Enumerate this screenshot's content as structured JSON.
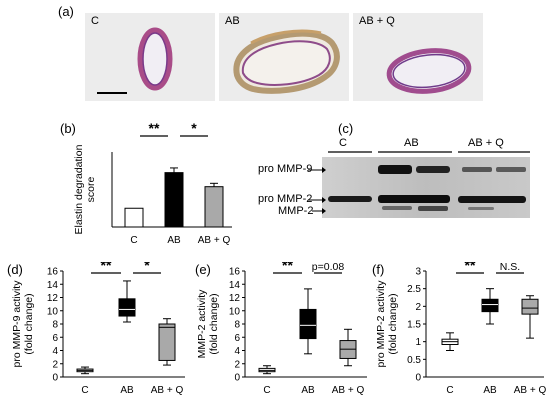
{
  "panels": {
    "a": {
      "label": "(a)",
      "images": [
        {
          "label": "C",
          "ring_color": "#b0508a"
        },
        {
          "label": "AB",
          "ring_color": "#9a7a6a"
        },
        {
          "label": "AB + Q",
          "ring_color": "#a05090"
        }
      ]
    },
    "b": {
      "label": "(b)"
    },
    "c": {
      "label": "(c)",
      "lanes": [
        "C",
        "AB",
        "AB + Q"
      ],
      "bands": [
        "pro MMP-9",
        "pro MMP-2",
        "MMP-2"
      ]
    },
    "d": {
      "label": "(d)"
    },
    "e": {
      "label": "(e)"
    },
    "f": {
      "label": "(f)"
    }
  },
  "chart_data": [
    {
      "id": "b",
      "type": "bar",
      "categories": [
        "C",
        "AB",
        "AB + Q"
      ],
      "values": [
        1.0,
        2.9,
        2.15
      ],
      "errors": [
        0,
        0.25,
        0.18
      ],
      "colors": [
        "#ffffff",
        "#000000",
        "#a9a9a9"
      ],
      "ylabel": "Elastin degradation score",
      "ylabel_lines": [
        "Elastin degradation",
        "score"
      ],
      "ylim": [
        0,
        4
      ],
      "yticks": [],
      "grid": false,
      "significance": [
        {
          "from": 0,
          "to": 1,
          "text": "**"
        },
        {
          "from": 1,
          "to": 2,
          "text": "*"
        }
      ]
    },
    {
      "id": "d",
      "type": "box",
      "categories": [
        "C",
        "AB",
        "AB + Q"
      ],
      "boxes": [
        {
          "min": 0.5,
          "q1": 0.8,
          "median": 1.0,
          "q3": 1.2,
          "max": 1.5,
          "fill": "#ffffff"
        },
        {
          "min": 8.3,
          "q1": 9.2,
          "median": 10.2,
          "q3": 11.8,
          "max": 14.5,
          "fill": "#000000"
        },
        {
          "min": 1.8,
          "q1": 2.5,
          "median": 7.5,
          "q3": 8.0,
          "max": 8.8,
          "fill": "#a9a9a9"
        }
      ],
      "ylabel": "pro MMP-9 activity (fold change)",
      "ylabel_lines": [
        "pro MMP-9 activity",
        "(fold change)"
      ],
      "ylim": [
        0,
        16
      ],
      "yticks": [
        0,
        2,
        4,
        6,
        8,
        10,
        12,
        14,
        16
      ],
      "grid": false,
      "significance": [
        {
          "from": 0,
          "to": 1,
          "text": "**"
        },
        {
          "from": 1,
          "to": 2,
          "text": "*"
        }
      ]
    },
    {
      "id": "e",
      "type": "box",
      "categories": [
        "C",
        "AB",
        "AB + Q"
      ],
      "boxes": [
        {
          "min": 0.5,
          "q1": 0.8,
          "median": 1.0,
          "q3": 1.3,
          "max": 1.7,
          "fill": "#ffffff"
        },
        {
          "min": 3.5,
          "q1": 5.8,
          "median": 7.8,
          "q3": 10.2,
          "max": 13.3,
          "fill": "#000000"
        },
        {
          "min": 1.7,
          "q1": 2.8,
          "median": 4.2,
          "q3": 5.5,
          "max": 7.2,
          "fill": "#a9a9a9"
        }
      ],
      "ylabel": "MMP-2 activity (fold change)",
      "ylabel_lines": [
        "MMP-2 activity",
        "(fold change)"
      ],
      "ylim": [
        0,
        16
      ],
      "yticks": [
        0,
        2,
        4,
        6,
        8,
        10,
        12,
        14,
        16
      ],
      "grid": false,
      "significance": [
        {
          "from": 0,
          "to": 1,
          "text": "**"
        },
        {
          "from": 1,
          "to": 2,
          "text": "p=0.08"
        }
      ]
    },
    {
      "id": "f",
      "type": "box",
      "categories": [
        "C",
        "AB",
        "AB + Q"
      ],
      "boxes": [
        {
          "min": 0.75,
          "q1": 0.92,
          "median": 1.0,
          "q3": 1.07,
          "max": 1.25,
          "fill": "#ffffff"
        },
        {
          "min": 1.5,
          "q1": 1.85,
          "median": 2.05,
          "q3": 2.2,
          "max": 2.5,
          "fill": "#000000"
        },
        {
          "min": 1.1,
          "q1": 1.78,
          "median": 1.95,
          "q3": 2.2,
          "max": 2.3,
          "fill": "#a9a9a9"
        }
      ],
      "ylabel": "pro MMP-2 activity (fold change)",
      "ylabel_lines": [
        "pro MMP-2 activity",
        "(fold change)"
      ],
      "ylim": [
        0,
        3
      ],
      "yticks": [
        0,
        0.5,
        1,
        1.5,
        2,
        2.5,
        3
      ],
      "grid": false,
      "significance": [
        {
          "from": 0,
          "to": 1,
          "text": "**"
        },
        {
          "from": 1,
          "to": 2,
          "text": "N.S."
        }
      ]
    }
  ]
}
